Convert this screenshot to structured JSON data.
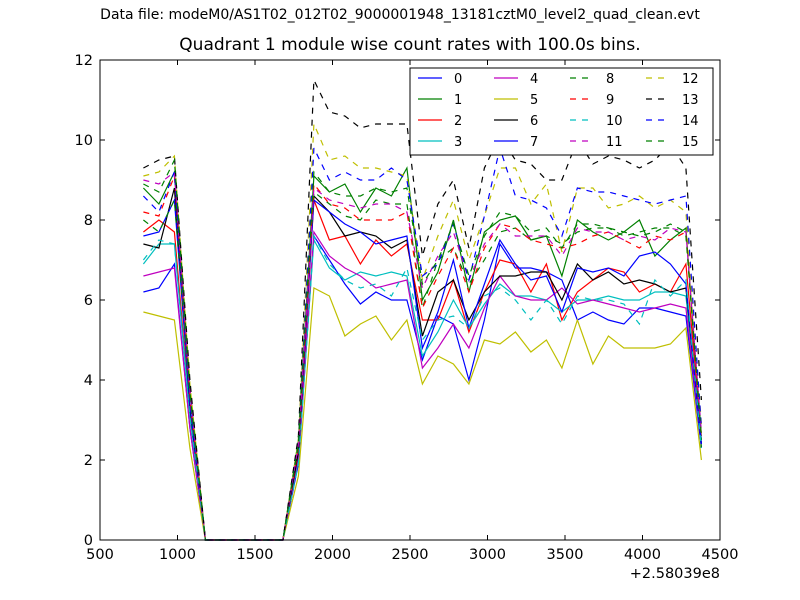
{
  "figure": {
    "suptitle": "Data file: modeM0/AS1T02_012T02_9000001948_13181cztM0_level2_quad_clean.evt",
    "title": "Quadrant 1 module wise count rates with 100.0s bins.",
    "offset_label": "+2.58039e8"
  },
  "chart_data": {
    "type": "line",
    "title": "Quadrant 1 module wise count rates with 100.0s bins.",
    "xlabel": "",
    "ylabel": "",
    "xlim": [
      500,
      4500
    ],
    "ylim": [
      0,
      12
    ],
    "x_offset": "+2.58039e8",
    "xticks": [
      500,
      1000,
      1500,
      2000,
      2500,
      3000,
      3500,
      4000,
      4500
    ],
    "yticks": [
      0,
      2,
      4,
      6,
      8,
      10,
      12
    ],
    "grid": false,
    "legend_position": "top-right",
    "legend_columns": 4,
    "x": [
      780,
      880,
      980,
      1080,
      1180,
      1280,
      1380,
      1480,
      1580,
      1680,
      1780,
      1880,
      1980,
      2080,
      2180,
      2280,
      2380,
      2480,
      2580,
      2680,
      2780,
      2880,
      2980,
      3080,
      3180,
      3280,
      3380,
      3480,
      3580,
      3680,
      3780,
      3880,
      3980,
      4080,
      4180,
      4280,
      4380
    ],
    "series": [
      {
        "name": "0",
        "color": "#0000ff",
        "dash": "solid",
        "values": [
          6.2,
          6.3,
          6.9,
          2.8,
          0,
          0,
          0,
          0,
          0,
          0,
          1.9,
          7.6,
          7.0,
          6.4,
          5.9,
          6.2,
          6.0,
          6.0,
          4.5,
          5.6,
          5.4,
          4.0,
          5.5,
          7.4,
          6.8,
          6.8,
          6.7,
          6.5,
          5.5,
          5.7,
          5.5,
          5.4,
          5.8,
          5.8,
          5.7,
          5.6,
          2.3
        ]
      },
      {
        "name": "1",
        "color": "#008000",
        "dash": "solid",
        "values": [
          8.8,
          8.4,
          9.2,
          3.8,
          0,
          0,
          0,
          0,
          0,
          0,
          2.5,
          9.1,
          8.7,
          8.9,
          8.2,
          8.8,
          8.6,
          9.3,
          6.0,
          6.7,
          8.0,
          6.2,
          7.7,
          8.0,
          8.1,
          7.5,
          7.6,
          6.6,
          8.0,
          7.7,
          7.5,
          7.7,
          8.0,
          7.1,
          7.5,
          7.8,
          2.3
        ]
      },
      {
        "name": "2",
        "color": "#ff0000",
        "dash": "solid",
        "values": [
          7.7,
          8.0,
          7.7,
          3.2,
          0,
          0,
          0,
          0,
          0,
          0,
          2.1,
          8.5,
          7.5,
          7.6,
          6.9,
          7.5,
          7.1,
          7.4,
          5.5,
          5.5,
          6.5,
          5.2,
          6.2,
          7.0,
          6.9,
          6.2,
          6.9,
          5.5,
          6.2,
          6.5,
          6.8,
          6.7,
          6.2,
          6.4,
          6.2,
          6.9,
          2.6
        ]
      },
      {
        "name": "3",
        "color": "#00bfbf",
        "dash": "solid",
        "values": [
          6.9,
          7.4,
          7.4,
          3.1,
          0,
          0,
          0,
          0,
          0,
          0,
          2.0,
          7.5,
          6.8,
          6.5,
          6.7,
          6.6,
          6.7,
          6.6,
          4.6,
          5.2,
          6.0,
          5.3,
          5.9,
          6.4,
          6.1,
          6.1,
          6.0,
          5.7,
          6.0,
          6.0,
          6.1,
          6.0,
          6.0,
          6.2,
          6.2,
          6.1,
          2.5
        ]
      },
      {
        "name": "4",
        "color": "#bf00bf",
        "dash": "solid",
        "values": [
          6.6,
          6.7,
          6.8,
          2.8,
          0,
          0,
          0,
          0,
          0,
          0,
          2.1,
          7.7,
          7.1,
          6.8,
          6.6,
          6.3,
          6.4,
          6.5,
          4.3,
          4.8,
          5.4,
          4.8,
          5.8,
          6.6,
          6.1,
          6.0,
          6.0,
          6.3,
          5.9,
          6.0,
          5.9,
          5.8,
          5.7,
          5.8,
          5.9,
          5.8,
          2.4
        ]
      },
      {
        "name": "5",
        "color": "#bfbf00",
        "dash": "solid",
        "values": [
          5.7,
          5.6,
          5.5,
          2.3,
          0,
          0,
          0,
          0,
          0,
          0,
          1.6,
          6.3,
          6.1,
          5.1,
          5.4,
          5.6,
          5.0,
          5.5,
          3.9,
          4.6,
          4.4,
          3.9,
          5.0,
          4.9,
          5.2,
          4.7,
          5.0,
          4.3,
          5.5,
          4.4,
          5.1,
          4.8,
          4.8,
          4.8,
          4.9,
          5.3,
          2.0
        ]
      },
      {
        "name": "6",
        "color": "#000000",
        "dash": "solid",
        "values": [
          7.4,
          7.3,
          8.8,
          3.3,
          0,
          0,
          0,
          0,
          0,
          0,
          2.2,
          8.6,
          8.2,
          7.6,
          7.7,
          7.6,
          7.3,
          7.5,
          5.1,
          6.2,
          6.5,
          5.5,
          6.2,
          6.6,
          6.6,
          6.7,
          6.7,
          6.0,
          6.9,
          6.5,
          6.7,
          6.4,
          6.5,
          6.4,
          6.2,
          6.3,
          2.4
        ]
      },
      {
        "name": "7",
        "color": "#0000ff",
        "dash": "solid",
        "values": [
          7.6,
          7.7,
          8.5,
          3.4,
          0,
          0,
          0,
          0,
          0,
          0,
          2.4,
          8.5,
          8.2,
          7.9,
          7.7,
          7.4,
          7.5,
          7.6,
          4.8,
          5.7,
          7.0,
          5.3,
          6.4,
          7.5,
          6.9,
          6.5,
          6.6,
          5.7,
          6.8,
          6.7,
          6.8,
          6.6,
          7.1,
          7.2,
          6.9,
          6.4,
          2.4
        ]
      },
      {
        "name": "8",
        "color": "#008000",
        "dash": "dashed",
        "values": [
          8.0,
          7.7,
          8.5,
          3.6,
          0,
          0,
          0,
          0,
          0,
          0,
          2.4,
          8.7,
          8.4,
          8.1,
          8.0,
          8.5,
          8.4,
          8.4,
          5.8,
          7.0,
          7.3,
          6.4,
          7.0,
          7.7,
          7.8,
          7.5,
          7.6,
          7.4,
          7.7,
          7.8,
          7.8,
          7.7,
          7.6,
          7.7,
          7.9,
          7.7,
          2.5
        ]
      },
      {
        "name": "9",
        "color": "#ff0000",
        "dash": "dashed",
        "values": [
          8.2,
          8.1,
          9.1,
          3.5,
          0,
          0,
          0,
          0,
          0,
          0,
          2.3,
          8.9,
          8.4,
          8.3,
          8.0,
          8.0,
          8.0,
          8.2,
          5.8,
          6.6,
          7.3,
          6.2,
          7.3,
          7.9,
          7.8,
          7.5,
          7.4,
          7.3,
          7.4,
          7.6,
          7.7,
          7.5,
          7.3,
          7.6,
          7.5,
          7.7,
          2.6
        ]
      },
      {
        "name": "10",
        "color": "#00bfbf",
        "dash": "dashed",
        "values": [
          7.0,
          7.5,
          7.4,
          3.1,
          0,
          0,
          0,
          0,
          0,
          0,
          1.9,
          7.6,
          6.9,
          6.5,
          6.3,
          6.4,
          6.1,
          6.8,
          5.0,
          5.5,
          5.6,
          5.3,
          6.1,
          6.3,
          6.0,
          5.5,
          6.0,
          5.4,
          6.1,
          6.0,
          6.0,
          5.9,
          5.4,
          6.5,
          6.1,
          6.5,
          2.3
        ]
      },
      {
        "name": "11",
        "color": "#bf00bf",
        "dash": "dashed",
        "values": [
          9.0,
          8.9,
          9.2,
          3.8,
          0,
          0,
          0,
          0,
          0,
          0,
          2.4,
          8.8,
          8.5,
          8.4,
          8.3,
          8.4,
          8.4,
          8.2,
          6.3,
          7.1,
          7.7,
          6.5,
          7.4,
          7.9,
          7.6,
          7.6,
          7.6,
          7.1,
          7.8,
          7.7,
          7.7,
          7.5,
          7.6,
          7.5,
          7.8,
          7.7,
          2.7
        ]
      },
      {
        "name": "12",
        "color": "#bfbf00",
        "dash": "dashed",
        "values": [
          9.1,
          9.2,
          9.6,
          3.9,
          0,
          0,
          0,
          0,
          0,
          0,
          2.5,
          10.4,
          9.5,
          9.6,
          9.3,
          9.3,
          9.2,
          9.1,
          6.5,
          7.6,
          8.5,
          7.0,
          8.1,
          9.3,
          9.3,
          8.4,
          8.9,
          7.2,
          8.8,
          8.8,
          8.3,
          8.4,
          8.6,
          8.3,
          8.5,
          8.2,
          2.9
        ]
      },
      {
        "name": "13",
        "color": "#000000",
        "dash": "dashed",
        "values": [
          9.3,
          9.5,
          9.6,
          4.0,
          0,
          0,
          0,
          0,
          0,
          0,
          2.6,
          11.5,
          10.7,
          10.6,
          10.3,
          10.4,
          10.4,
          10.4,
          7.1,
          8.4,
          9.0,
          7.3,
          9.3,
          10.1,
          9.5,
          9.4,
          9.0,
          9.0,
          10.0,
          9.4,
          9.6,
          9.5,
          9.3,
          9.5,
          9.9,
          9.3,
          3.5
        ]
      },
      {
        "name": "14",
        "color": "#0000ff",
        "dash": "dashed",
        "values": [
          8.6,
          8.2,
          9.2,
          3.6,
          0,
          0,
          0,
          0,
          0,
          0,
          2.4,
          9.8,
          9.0,
          9.2,
          9.0,
          9.0,
          9.3,
          9.0,
          6.6,
          6.9,
          7.9,
          6.5,
          8.1,
          9.8,
          8.6,
          8.5,
          8.3,
          7.6,
          8.8,
          8.7,
          8.7,
          8.6,
          8.5,
          8.4,
          8.5,
          8.6,
          2.8
        ]
      },
      {
        "name": "15",
        "color": "#008000",
        "dash": "dashed",
        "values": [
          8.9,
          8.7,
          9.5,
          3.7,
          0,
          0,
          0,
          0,
          0,
          0,
          2.4,
          9.2,
          8.7,
          8.6,
          8.6,
          8.8,
          8.7,
          8.8,
          6.4,
          7.0,
          7.9,
          6.6,
          7.6,
          8.2,
          8.1,
          7.7,
          7.8,
          7.3,
          7.9,
          7.9,
          7.8,
          7.6,
          7.7,
          7.8,
          7.8,
          7.6,
          2.6
        ]
      }
    ]
  }
}
